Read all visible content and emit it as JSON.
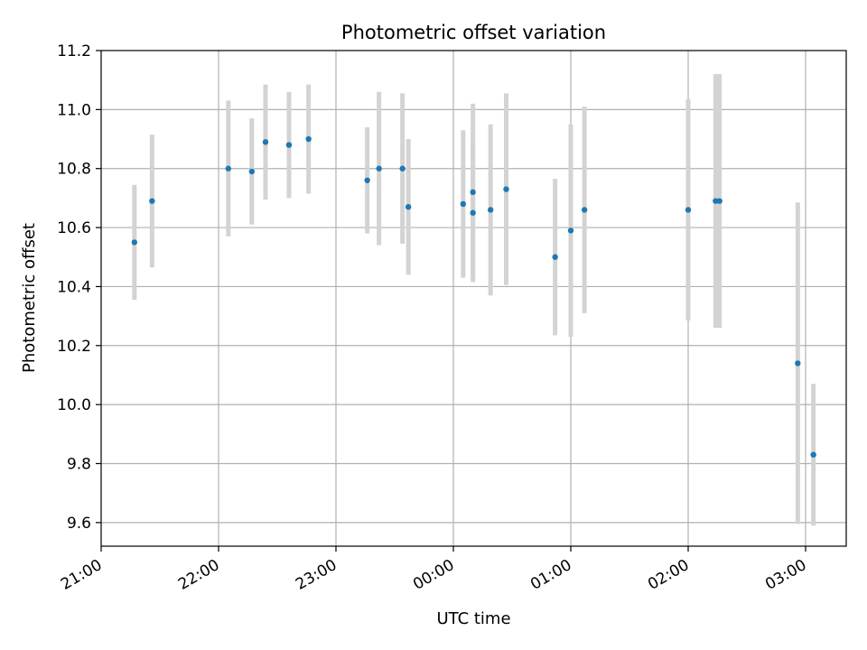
{
  "chart_data": {
    "type": "scatter",
    "title": "Photometric offset variation",
    "xlabel": "UTC time",
    "ylabel": "Photometric offset",
    "x_tick_labels": [
      "21:00",
      "22:00",
      "23:00",
      "00:00",
      "01:00",
      "02:00",
      "03:00"
    ],
    "y_tick_labels": [
      "9.6",
      "9.8",
      "10.0",
      "10.2",
      "10.4",
      "10.6",
      "10.8",
      "11.0",
      "11.2"
    ],
    "xlim": [
      "21:00",
      "03:20"
    ],
    "ylim": [
      9.52,
      11.2
    ],
    "grid": true,
    "colors": {
      "point": "#1f77b4",
      "errorbar": "#d3d3d3",
      "grid": "#b0b0b0"
    },
    "points": [
      {
        "x": "21:17",
        "y": 10.55,
        "err": 0.195
      },
      {
        "x": "21:26",
        "y": 10.69,
        "err": 0.225
      },
      {
        "x": "22:05",
        "y": 10.8,
        "err": 0.23
      },
      {
        "x": "22:17",
        "y": 10.79,
        "err": 0.18
      },
      {
        "x": "22:24",
        "y": 10.89,
        "err": 0.195
      },
      {
        "x": "22:36",
        "y": 10.88,
        "err": 0.18
      },
      {
        "x": "22:46",
        "y": 10.9,
        "err": 0.185
      },
      {
        "x": "23:16",
        "y": 10.76,
        "err": 0.18
      },
      {
        "x": "23:22",
        "y": 10.8,
        "err": 0.26
      },
      {
        "x": "23:34",
        "y": 10.8,
        "err": 0.255
      },
      {
        "x": "23:37",
        "y": 10.67,
        "err": 0.23
      },
      {
        "x": "00:05",
        "y": 10.68,
        "err": 0.25
      },
      {
        "x": "00:10",
        "y": 10.65,
        "err": 0.235
      },
      {
        "x": "00:10",
        "y": 10.72,
        "err": 0.3
      },
      {
        "x": "00:19",
        "y": 10.66,
        "err": 0.29
      },
      {
        "x": "00:27",
        "y": 10.73,
        "err": 0.325
      },
      {
        "x": "00:52",
        "y": 10.5,
        "err": 0.265
      },
      {
        "x": "01:00",
        "y": 10.59,
        "err": 0.36
      },
      {
        "x": "01:07",
        "y": 10.66,
        "err": 0.35
      },
      {
        "x": "02:00",
        "y": 10.66,
        "err": 0.375
      },
      {
        "x": "02:14",
        "y": 10.69,
        "err": 0.43
      },
      {
        "x": "02:16",
        "y": 10.69,
        "err": 0.43
      },
      {
        "x": "02:56",
        "y": 10.14,
        "err": 0.545
      },
      {
        "x": "03:04",
        "y": 9.83,
        "err": 0.24
      }
    ]
  }
}
